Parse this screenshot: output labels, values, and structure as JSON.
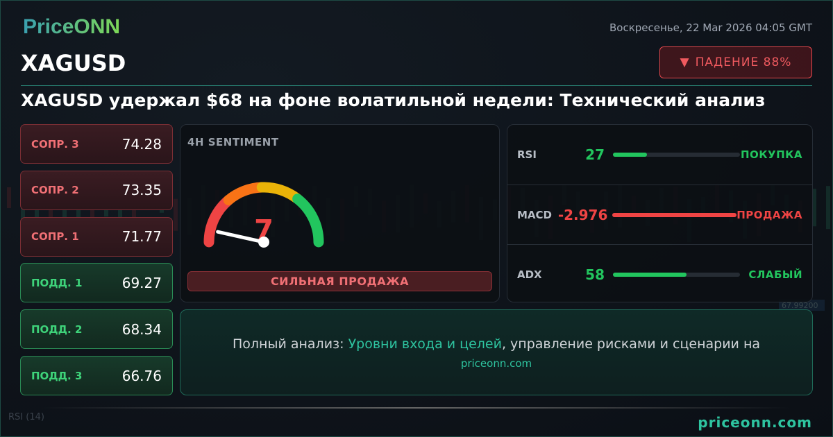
{
  "brand": {
    "logo": "PriceONN",
    "footer": "priceonn.com"
  },
  "header": {
    "date": "Воскресенье, 22 Mar 2026 04:05 GMT",
    "symbol": "XAGUSD",
    "badge": {
      "icon": "triangle-down-icon",
      "label": "ПАДЕНИЕ 88%"
    },
    "headline": "XAGUSD удержал $68 на фоне волатильной недели: Технический анализ"
  },
  "levels": [
    {
      "label": "СОПР. 3",
      "value": "74.28",
      "type": "resistance"
    },
    {
      "label": "СОПР. 2",
      "value": "73.35",
      "type": "resistance"
    },
    {
      "label": "СОПР. 1",
      "value": "71.77",
      "type": "resistance"
    },
    {
      "label": "ПОДД. 1",
      "value": "69.27",
      "type": "support"
    },
    {
      "label": "ПОДД. 2",
      "value": "68.34",
      "type": "support"
    },
    {
      "label": "ПОДД. 3",
      "value": "66.76",
      "type": "support"
    }
  ],
  "sentiment": {
    "title": "4H SENTIMENT",
    "value": "7",
    "score": 7,
    "max": 100,
    "label": "СИЛЬНАЯ ПРОДАЖА"
  },
  "indicators": [
    {
      "name": "RSI",
      "value": "27",
      "fill_pct": 27,
      "signal": "ПОКУПКА",
      "color": "#22c55e"
    },
    {
      "name": "MACD",
      "value": "-2.976",
      "fill_pct": 100,
      "signal": "ПРОДАЖА",
      "color": "#ef4444"
    },
    {
      "name": "ADX",
      "value": "58",
      "fill_pct": 58,
      "signal": "СЛАБЫЙ",
      "color": "#22c55e"
    }
  ],
  "cta": {
    "prefix": "Полный анализ: ",
    "highlight": "Уровни входа и целей",
    "suffix": ", управление рисками и сценарии на",
    "link": "priceonn.com"
  },
  "background": {
    "rsi_label": "RSI (14)",
    "price_label": "67.99200"
  },
  "colors": {
    "accent": "#2ec4a0",
    "sell": "#ef4444",
    "buy": "#22c55e"
  }
}
